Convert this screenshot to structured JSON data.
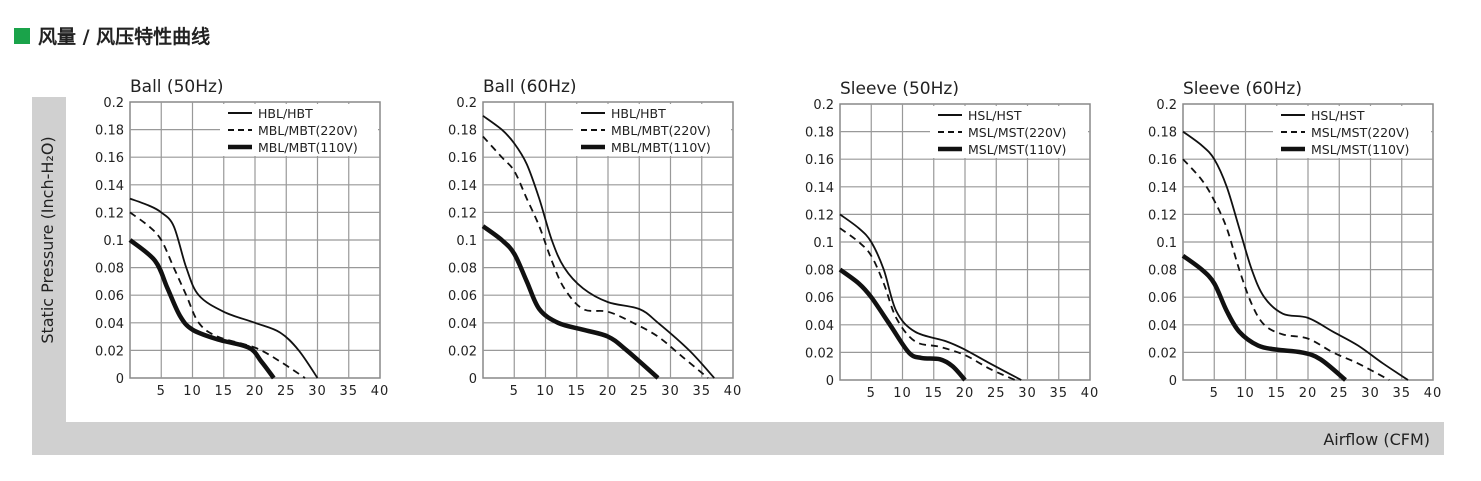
{
  "header": {
    "title": "风量 / 风压特性曲线",
    "accent": "#1aa34a"
  },
  "ylabel": "Static Pressure (Inch-H₂O)",
  "xlabel": "Airflow (CFM)",
  "chart_data": [
    {
      "type": "line",
      "title": "Ball (50Hz)",
      "xlim": [
        0,
        40
      ],
      "ylim": [
        0,
        0.2
      ],
      "xticks": [
        "5",
        "10",
        "15",
        "20",
        "25",
        "30",
        "35",
        "40"
      ],
      "yticks": [
        "0",
        "0.02",
        "0.04",
        "0.06",
        "0.08",
        "0.1",
        "0.12",
        "0.14",
        "0.16",
        "0.18",
        "0.2"
      ],
      "legend": "top-right",
      "series": [
        {
          "name": "HBL/HBT",
          "style": "solid",
          "points": [
            [
              0,
              0.13
            ],
            [
              3,
              0.125
            ],
            [
              5,
              0.12
            ],
            [
              7,
              0.11
            ],
            [
              9,
              0.08
            ],
            [
              11,
              0.06
            ],
            [
              15,
              0.048
            ],
            [
              20,
              0.04
            ],
            [
              24,
              0.033
            ],
            [
              27,
              0.02
            ],
            [
              30,
              0
            ]
          ]
        },
        {
          "name": "MBL/MBT(220V)",
          "style": "dashed",
          "points": [
            [
              0,
              0.12
            ],
            [
              3,
              0.11
            ],
            [
              5,
              0.1
            ],
            [
              7,
              0.08
            ],
            [
              9,
              0.06
            ],
            [
              11,
              0.04
            ],
            [
              14,
              0.03
            ],
            [
              20,
              0.022
            ],
            [
              24,
              0.012
            ],
            [
              28,
              0
            ]
          ]
        },
        {
          "name": "MBL/MBT(110V)",
          "style": "thick",
          "points": [
            [
              0,
              0.1
            ],
            [
              4,
              0.085
            ],
            [
              6,
              0.065
            ],
            [
              8,
              0.045
            ],
            [
              10,
              0.035
            ],
            [
              14,
              0.028
            ],
            [
              19,
              0.022
            ],
            [
              21,
              0.012
            ],
            [
              23,
              0
            ]
          ]
        }
      ]
    },
    {
      "type": "line",
      "title": "Ball  (60Hz)",
      "xlim": [
        0,
        40
      ],
      "ylim": [
        0,
        0.2
      ],
      "xticks": [
        "5",
        "10",
        "15",
        "20",
        "25",
        "30",
        "35",
        "40"
      ],
      "yticks": [
        "0",
        "0.02",
        "0.04",
        "0.06",
        "0.08",
        "0.1",
        "0.12",
        "0.14",
        "0.16",
        "0.18",
        "0.2"
      ],
      "legend": "top-right",
      "series": [
        {
          "name": "HBL/HBT",
          "style": "solid",
          "points": [
            [
              0,
              0.19
            ],
            [
              3,
              0.18
            ],
            [
              5,
              0.17
            ],
            [
              7,
              0.155
            ],
            [
              9,
              0.13
            ],
            [
              11,
              0.1
            ],
            [
              13,
              0.08
            ],
            [
              16,
              0.065
            ],
            [
              20,
              0.055
            ],
            [
              25,
              0.05
            ],
            [
              28,
              0.04
            ],
            [
              33,
              0.02
            ],
            [
              37,
              0
            ]
          ]
        },
        {
          "name": "MBL/MBT(220V)",
          "style": "dashed",
          "points": [
            [
              0,
              0.175
            ],
            [
              3,
              0.16
            ],
            [
              5,
              0.15
            ],
            [
              7,
              0.13
            ],
            [
              9,
              0.11
            ],
            [
              11,
              0.085
            ],
            [
              13,
              0.065
            ],
            [
              16,
              0.05
            ],
            [
              20,
              0.048
            ],
            [
              24,
              0.04
            ],
            [
              28,
              0.03
            ],
            [
              32,
              0.015
            ],
            [
              36,
              0
            ]
          ]
        },
        {
          "name": "MBL/MBT(110V)",
          "style": "thick",
          "points": [
            [
              0,
              0.11
            ],
            [
              3,
              0.1
            ],
            [
              5,
              0.09
            ],
            [
              7,
              0.07
            ],
            [
              9,
              0.05
            ],
            [
              12,
              0.04
            ],
            [
              16,
              0.035
            ],
            [
              20,
              0.03
            ],
            [
              23,
              0.02
            ],
            [
              28,
              0
            ]
          ]
        }
      ]
    },
    {
      "type": "line",
      "title": "Sleeve (50Hz)",
      "xlim": [
        0,
        40
      ],
      "ylim": [
        0,
        0.2
      ],
      "xticks": [
        "5",
        "10",
        "15",
        "20",
        "25",
        "30",
        "35",
        "40"
      ],
      "yticks": [
        "0",
        "0.02",
        "0.04",
        "0.06",
        "0.08",
        "0.1",
        "0.12",
        "0.14",
        "0.16",
        "0.18",
        "0.2"
      ],
      "legend": "top-right",
      "series": [
        {
          "name": "HSL/HST",
          "style": "solid",
          "points": [
            [
              0,
              0.12
            ],
            [
              3,
              0.11
            ],
            [
              5,
              0.1
            ],
            [
              7,
              0.08
            ],
            [
              9,
              0.05
            ],
            [
              12,
              0.035
            ],
            [
              17,
              0.028
            ],
            [
              20,
              0.022
            ],
            [
              24,
              0.012
            ],
            [
              29,
              0
            ]
          ]
        },
        {
          "name": "MSL/MST(220V)",
          "style": "dashed",
          "points": [
            [
              0,
              0.11
            ],
            [
              3,
              0.1
            ],
            [
              5,
              0.09
            ],
            [
              7,
              0.07
            ],
            [
              9,
              0.045
            ],
            [
              12,
              0.028
            ],
            [
              16,
              0.024
            ],
            [
              20,
              0.018
            ],
            [
              24,
              0.008
            ],
            [
              28,
              0
            ]
          ]
        },
        {
          "name": "MSL/MST(110V)",
          "style": "thick",
          "points": [
            [
              0,
              0.08
            ],
            [
              3,
              0.07
            ],
            [
              5,
              0.06
            ],
            [
              8,
              0.04
            ],
            [
              11,
              0.02
            ],
            [
              13,
              0.016
            ],
            [
              16,
              0.015
            ],
            [
              18,
              0.01
            ],
            [
              20,
              0
            ]
          ]
        }
      ]
    },
    {
      "type": "line",
      "title": "Sleeve (60Hz)",
      "xlim": [
        0,
        40
      ],
      "ylim": [
        0,
        0.2
      ],
      "xticks": [
        "5",
        "10",
        "15",
        "20",
        "25",
        "30",
        "35",
        "40"
      ],
      "yticks": [
        "0",
        "0.02",
        "0.04",
        "0.06",
        "0.08",
        "0.1",
        "0.12",
        "0.14",
        "0.16",
        "0.18",
        "0.2"
      ],
      "legend": "top-right",
      "series": [
        {
          "name": "HSL/HST",
          "style": "solid",
          "points": [
            [
              0,
              0.18
            ],
            [
              3,
              0.17
            ],
            [
              5,
              0.16
            ],
            [
              7,
              0.14
            ],
            [
              9,
              0.11
            ],
            [
              11,
              0.08
            ],
            [
              13,
              0.06
            ],
            [
              16,
              0.048
            ],
            [
              20,
              0.045
            ],
            [
              24,
              0.035
            ],
            [
              28,
              0.025
            ],
            [
              32,
              0.012
            ],
            [
              36,
              0
            ]
          ]
        },
        {
          "name": "MSL/MST(220V)",
          "style": "dashed",
          "points": [
            [
              0,
              0.16
            ],
            [
              3,
              0.145
            ],
            [
              5,
              0.13
            ],
            [
              7,
              0.11
            ],
            [
              9,
              0.08
            ],
            [
              11,
              0.055
            ],
            [
              13,
              0.04
            ],
            [
              16,
              0.033
            ],
            [
              20,
              0.03
            ],
            [
              24,
              0.02
            ],
            [
              28,
              0.012
            ],
            [
              33,
              0
            ]
          ]
        },
        {
          "name": "MSL/MST(110V)",
          "style": "thick",
          "points": [
            [
              0,
              0.09
            ],
            [
              3,
              0.08
            ],
            [
              5,
              0.07
            ],
            [
              7,
              0.05
            ],
            [
              9,
              0.035
            ],
            [
              12,
              0.025
            ],
            [
              15,
              0.022
            ],
            [
              19,
              0.02
            ],
            [
              22,
              0.015
            ],
            [
              26,
              0
            ]
          ]
        }
      ]
    }
  ]
}
